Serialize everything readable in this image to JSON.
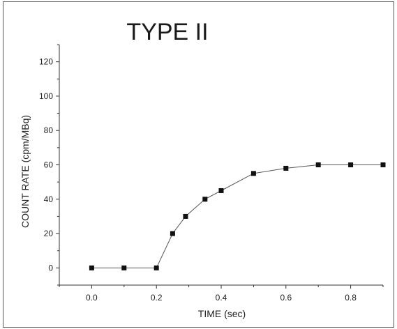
{
  "chart_data": {
    "type": "line",
    "title": "TYPE II",
    "xlabel": "TIME (sec)",
    "ylabel": "COUNT RATE (cpm/MBq)",
    "xlim": [
      -0.1,
      0.9
    ],
    "ylim": [
      -10,
      130
    ],
    "xticks": [
      0.0,
      0.2,
      0.4,
      0.6,
      0.8
    ],
    "xtick_labels": [
      "0.0",
      "0.2",
      "0.4",
      "0.6",
      "0.8"
    ],
    "yticks": [
      0,
      20,
      40,
      60,
      80,
      100,
      120
    ],
    "ytick_labels": [
      "0",
      "20",
      "40",
      "60",
      "80",
      "100",
      "120"
    ],
    "grid": false,
    "series": [
      {
        "x": [
          0.0,
          0.1,
          0.2,
          0.25,
          0.29,
          0.35,
          0.4,
          0.5,
          0.6,
          0.7,
          0.8,
          0.9
        ],
        "y": [
          0,
          0,
          0,
          20,
          30,
          40,
          45,
          55,
          58,
          60,
          60,
          60
        ],
        "marker": "square",
        "color": "#111111"
      }
    ]
  }
}
